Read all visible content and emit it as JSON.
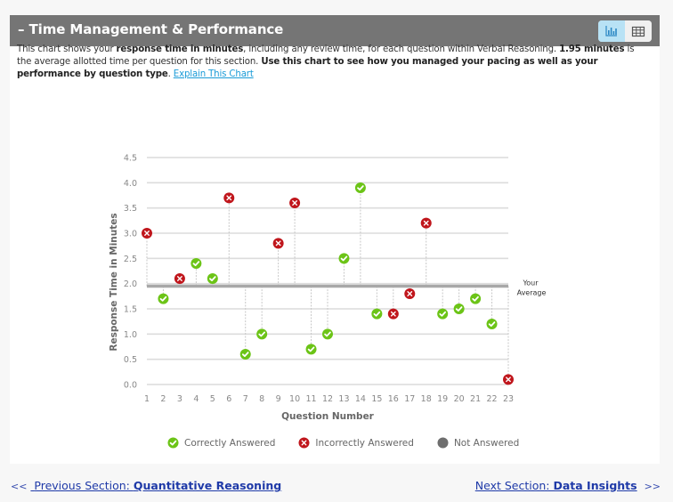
{
  "section": {
    "collapse_symbol": "–",
    "title": "Time Management & Performance",
    "view_toggle": [
      {
        "icon": "bar-chart-icon",
        "active": true
      },
      {
        "icon": "table-icon",
        "active": false
      }
    ]
  },
  "description": {
    "part1": "This chart shows your ",
    "bold1": "response time in minutes",
    "part2": ", including any review time, for each question within Verbal Reasoning. ",
    "bold2": "1.95 minutes",
    "part3": " is the average allotted time per question for this section. ",
    "bold3": "Use this chart to see how you managed your pacing as well as your performance by question type",
    "part4": ". ",
    "link": "Explain This Chart"
  },
  "chart_data": {
    "type": "scatter",
    "xlabel": "Question Number",
    "ylabel": "Response Time in Minutes",
    "ylim": [
      0,
      4.5
    ],
    "yticks": [
      "0.0",
      "0.5",
      "1.0",
      "1.5",
      "2.0",
      "2.5",
      "3.0",
      "3.5",
      "4.0",
      "4.5"
    ],
    "ytick_values": [
      0,
      0.5,
      1.0,
      1.5,
      2.0,
      2.5,
      3.0,
      3.5,
      4.0,
      4.5
    ],
    "x": [
      1,
      2,
      3,
      4,
      5,
      6,
      7,
      8,
      9,
      10,
      11,
      12,
      13,
      14,
      15,
      16,
      17,
      18,
      19,
      20,
      21,
      22,
      23
    ],
    "xticks": [
      "1",
      "2",
      "3",
      "4",
      "5",
      "6",
      "7",
      "8",
      "9",
      "10",
      "11",
      "12",
      "13",
      "14",
      "15",
      "16",
      "17",
      "18",
      "19",
      "20",
      "21",
      "22",
      "23"
    ],
    "values": [
      3.0,
      1.7,
      2.1,
      2.4,
      2.1,
      3.7,
      0.6,
      1.0,
      2.8,
      3.6,
      0.7,
      1.0,
      2.5,
      3.9,
      1.4,
      1.4,
      1.8,
      3.2,
      1.4,
      1.5,
      1.7,
      1.2,
      0.1
    ],
    "status": [
      "incorrect",
      "correct",
      "incorrect",
      "correct",
      "correct",
      "incorrect",
      "correct",
      "correct",
      "incorrect",
      "incorrect",
      "correct",
      "correct",
      "correct",
      "correct",
      "correct",
      "incorrect",
      "incorrect",
      "incorrect",
      "correct",
      "correct",
      "correct",
      "correct",
      "incorrect"
    ],
    "average": 1.95,
    "average_label_line1": "Your",
    "average_label_line2": "Average",
    "grid": true,
    "legend_position": "bottom",
    "legend": [
      {
        "key": "correct",
        "label": "Correctly Answered",
        "color": "#6cc417"
      },
      {
        "key": "incorrect",
        "label": "Incorrectly Answered",
        "color": "#c0161c"
      },
      {
        "key": "unanswered",
        "label": "Not Answered",
        "color": "#6e6e6e"
      }
    ]
  },
  "navigation": {
    "prev_chevron": "<<",
    "prev_prefix": "Previous Section: ",
    "prev_name": "Quantitative Reasoning",
    "next_prefix": "Next Section: ",
    "next_name": "Data Insights",
    "next_chevron": ">>"
  }
}
